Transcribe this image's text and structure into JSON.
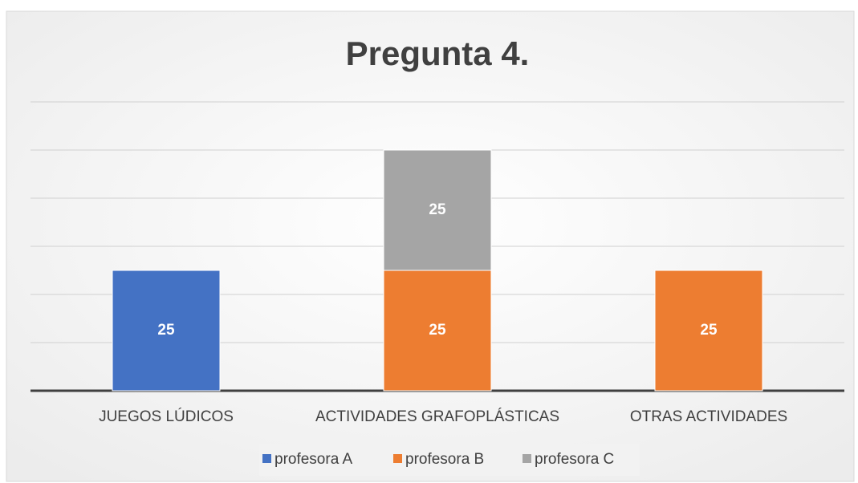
{
  "chart_data": {
    "type": "bar",
    "stacked": true,
    "title": "Pregunta 4.",
    "categories": [
      "JUEGOS LÚDICOS",
      "ACTIVIDADES GRAFOPLÁSTICAS",
      "OTRAS ACTIVIDADES"
    ],
    "series": [
      {
        "name": "profesora A",
        "color": "#4472c4",
        "values": [
          25,
          null,
          null
        ]
      },
      {
        "name": "profesora B",
        "color": "#ed7d31",
        "values": [
          null,
          25,
          25
        ]
      },
      {
        "name": "profesora C",
        "color": "#a5a5a5",
        "values": [
          null,
          25,
          null
        ]
      }
    ],
    "ylim": [
      0,
      60
    ],
    "yticks": [
      0,
      10,
      20,
      30,
      40,
      50,
      60
    ],
    "grid": true,
    "legend": "bottom"
  }
}
